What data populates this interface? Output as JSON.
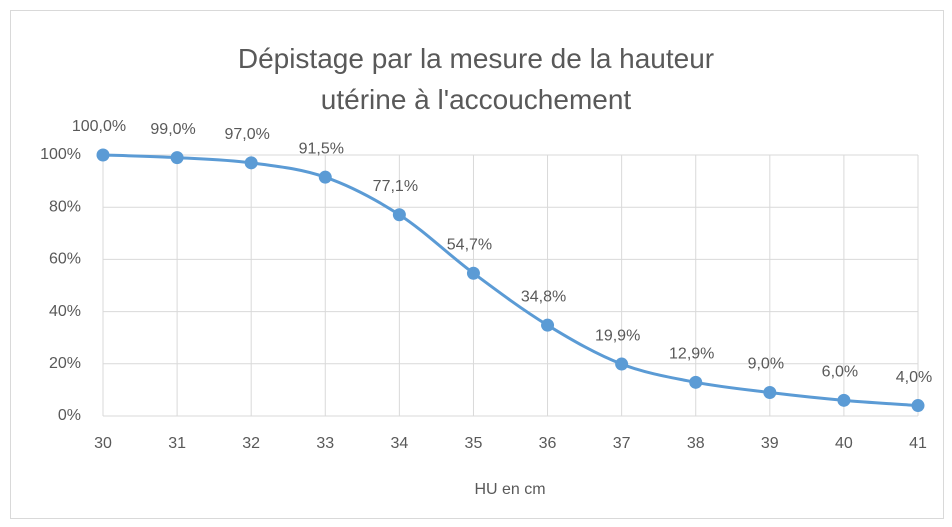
{
  "chart_data": {
    "type": "line",
    "title": "Dépistage par la mesure de la hauteur utérine à l'accouchement",
    "x_label": "HU en cm",
    "x": [
      30,
      31,
      32,
      33,
      34,
      35,
      36,
      37,
      38,
      39,
      40,
      41
    ],
    "series": [
      {
        "name": "Dépistage",
        "color": "#5b9bd5",
        "values": [
          100.0,
          99.0,
          97.0,
          91.5,
          77.1,
          54.7,
          34.8,
          19.9,
          12.9,
          9.0,
          6.0,
          4.0
        ],
        "value_labels": [
          "100,0%",
          "99,0%",
          "97,0%",
          "91,5%",
          "77,1%",
          "54,7%",
          "34,8%",
          "19,9%",
          "12,9%",
          "9,0%",
          "6,0%",
          "4,0%"
        ]
      }
    ],
    "xlim": [
      30,
      41
    ],
    "xticks": [
      30,
      31,
      32,
      33,
      34,
      35,
      36,
      37,
      38,
      39,
      40,
      41
    ],
    "ylim": [
      0,
      100
    ],
    "yticks": [
      {
        "value": 0,
        "label": "0%"
      },
      {
        "value": 20,
        "label": "20%"
      },
      {
        "value": 40,
        "label": "40%"
      },
      {
        "value": 60,
        "label": "60%"
      },
      {
        "value": 80,
        "label": "80%"
      },
      {
        "value": 100,
        "label": "100%"
      }
    ],
    "grid": true,
    "smooth": true
  }
}
